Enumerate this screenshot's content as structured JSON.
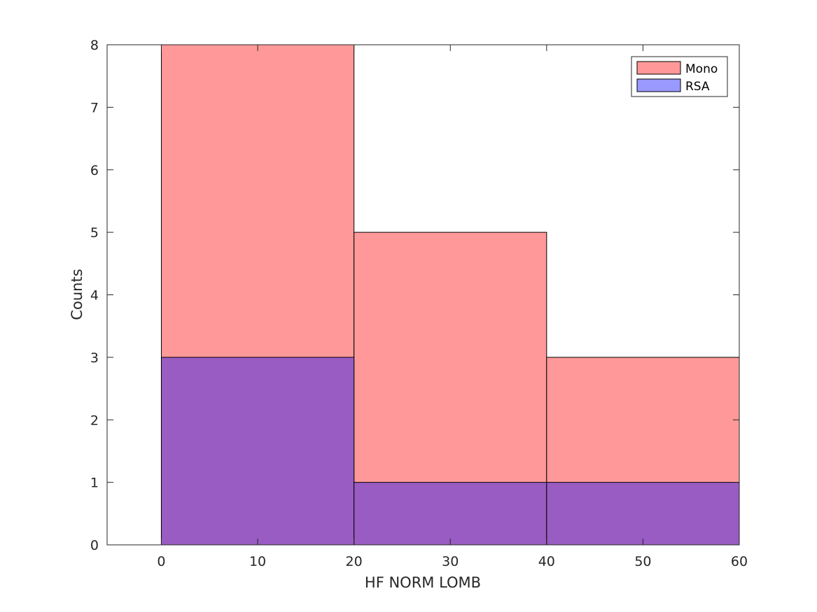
{
  "chart_data": {
    "type": "bar",
    "subtype": "histogram",
    "title": "",
    "xlabel": "HF NORM LOMB",
    "ylabel": "Counts",
    "xlim": [
      -5.63,
      60
    ],
    "ylim": [
      0,
      8
    ],
    "xticks": [
      0,
      10,
      20,
      30,
      40,
      50,
      60
    ],
    "yticks": [
      0,
      1,
      2,
      3,
      4,
      5,
      6,
      7,
      8
    ],
    "grid": false,
    "legend_position": "top-right",
    "bin_edges": [
      0,
      20,
      40,
      60
    ],
    "series": [
      {
        "name": "Mono",
        "color": "#ff9999",
        "values": [
          8,
          5,
          3
        ]
      },
      {
        "name": "RSA",
        "color": "#9999ff",
        "values": [
          3,
          1,
          1
        ]
      }
    ],
    "overlap_color": "#995cc2"
  }
}
